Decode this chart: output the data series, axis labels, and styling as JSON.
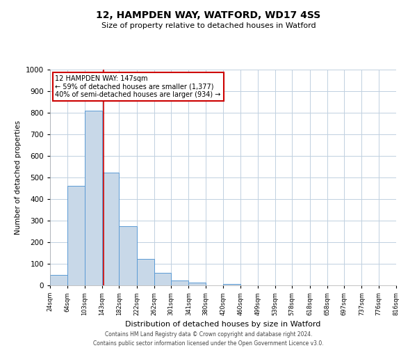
{
  "title": "12, HAMPDEN WAY, WATFORD, WD17 4SS",
  "subtitle": "Size of property relative to detached houses in Watford",
  "xlabel": "Distribution of detached houses by size in Watford",
  "ylabel": "Number of detached properties",
  "footer_line1": "Contains HM Land Registry data © Crown copyright and database right 2024.",
  "footer_line2": "Contains public sector information licensed under the Open Government Licence v3.0.",
  "bin_labels": [
    "24sqm",
    "64sqm",
    "103sqm",
    "143sqm",
    "182sqm",
    "222sqm",
    "262sqm",
    "301sqm",
    "341sqm",
    "380sqm",
    "420sqm",
    "460sqm",
    "499sqm",
    "539sqm",
    "578sqm",
    "618sqm",
    "658sqm",
    "697sqm",
    "737sqm",
    "776sqm",
    "816sqm"
  ],
  "bar_values": [
    47,
    460,
    810,
    522,
    275,
    123,
    57,
    22,
    12,
    0,
    7,
    0,
    0,
    0,
    0,
    0,
    0,
    0,
    0,
    0,
    0
  ],
  "bar_color": "#c8d8e8",
  "bar_edge_color": "#5b9bd5",
  "grid_color": "#c0d0e0",
  "background_color": "#ffffff",
  "annotation_box_text": "12 HAMPDEN WAY: 147sqm",
  "annotation_line1": "← 59% of detached houses are smaller (1,377)",
  "annotation_line2": "40% of semi-detached houses are larger (934) →",
  "annotation_box_color": "#ffffff",
  "annotation_box_edge_color": "#cc0000",
  "property_line_x": 147,
  "property_line_color": "#cc0000",
  "ylim": [
    0,
    1000
  ],
  "title_fontsize": 10,
  "subtitle_fontsize": 8,
  "ylabel_fontsize": 7.5,
  "xlabel_fontsize": 8,
  "ytick_fontsize": 7.5,
  "xtick_fontsize": 6,
  "footer_fontsize": 5.5,
  "ann_fontsize": 7
}
